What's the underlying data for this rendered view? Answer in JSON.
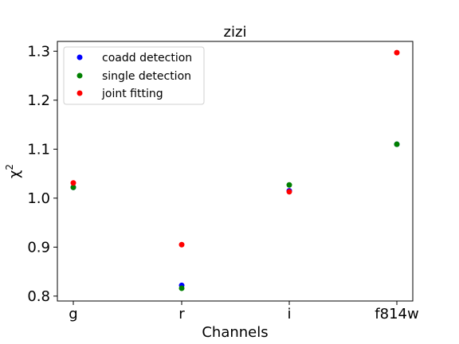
{
  "chart_data": {
    "type": "scatter",
    "title": "zizi",
    "xlabel": "Channels",
    "ylabel_base": "χ",
    "ylabel_sup": "2",
    "categories": [
      "g",
      "r",
      "i",
      "f814w"
    ],
    "ylim": [
      0.79,
      1.32
    ],
    "yticks": [
      0.8,
      0.9,
      1.0,
      1.1,
      1.2,
      1.3
    ],
    "ytick_labels": [
      "0.8",
      "0.9",
      "1.0",
      "1.1",
      "1.2",
      "1.3"
    ],
    "grid": false,
    "legend_position": "top-left",
    "series": [
      {
        "name": "coadd detection",
        "color": "#0000ff",
        "values": [
          1.022,
          0.822,
          1.015,
          1.11
        ]
      },
      {
        "name": "single detection",
        "color": "#008000",
        "values": [
          1.022,
          0.816,
          1.027,
          1.11
        ]
      },
      {
        "name": "joint fitting",
        "color": "#ff0000",
        "values": [
          1.031,
          0.905,
          1.013,
          1.297
        ]
      }
    ]
  }
}
